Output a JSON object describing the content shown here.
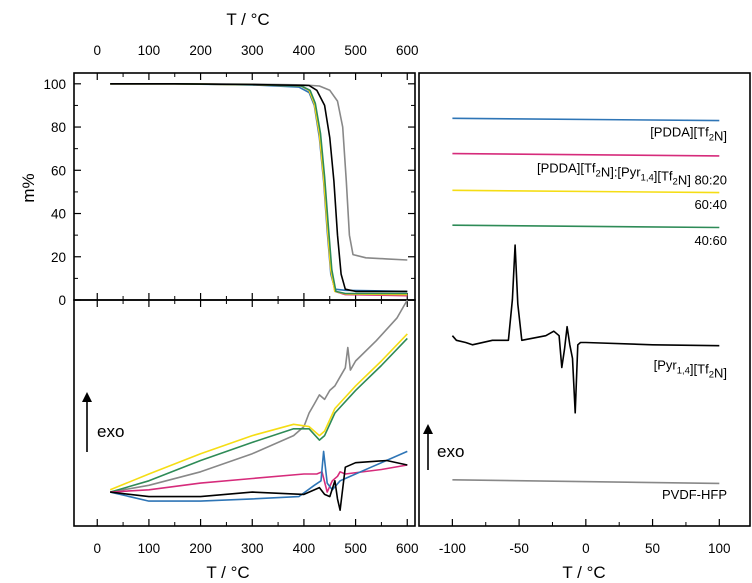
{
  "chart_data": [
    {
      "id": "tga",
      "type": "line",
      "xlabel": "T / °C",
      "ylabel": "m%",
      "xlim": [
        -45,
        615
      ],
      "ylim": [
        0,
        105
      ],
      "xticks": [
        0,
        100,
        200,
        300,
        400,
        500,
        600
      ],
      "yticks": [
        0,
        20,
        40,
        60,
        80,
        100
      ],
      "series": [
        {
          "color": "#888888",
          "x": [
            25,
            150,
            300,
            400,
            430,
            450,
            465,
            475,
            482,
            488,
            495,
            520,
            560,
            600
          ],
          "y": [
            100,
            100,
            99.8,
            99.5,
            99,
            97,
            92,
            80,
            55,
            30,
            21,
            19.5,
            19,
            18.5
          ]
        },
        {
          "color": "#2e75b6",
          "x": [
            25,
            150,
            300,
            390,
            410,
            420,
            430,
            438,
            445,
            452,
            460,
            480,
            600
          ],
          "y": [
            100,
            100,
            99.5,
            98.5,
            96,
            90,
            75,
            55,
            32,
            12,
            5,
            4.5,
            4
          ]
        },
        {
          "color": "#d62b7b",
          "x": [
            25,
            150,
            300,
            395,
            410,
            420,
            430,
            438,
            445,
            452,
            460,
            480,
            600
          ],
          "y": [
            100,
            100,
            99.6,
            99,
            97,
            91,
            77,
            57,
            35,
            14,
            4,
            2.5,
            2
          ]
        },
        {
          "color": "#f5dd14",
          "x": [
            25,
            150,
            300,
            395,
            410,
            420,
            430,
            438,
            445,
            452,
            460,
            480,
            600
          ],
          "y": [
            100,
            100,
            99.6,
            99,
            97,
            91,
            77,
            57,
            35,
            14,
            4,
            2.8,
            2.5
          ]
        },
        {
          "color": "#2e8b57",
          "x": [
            25,
            150,
            300,
            395,
            412,
            422,
            432,
            440,
            447,
            454,
            462,
            480,
            600
          ],
          "y": [
            100,
            100,
            99.6,
            99,
            97,
            91,
            77,
            57,
            35,
            14,
            4,
            3,
            3
          ]
        },
        {
          "color": "#000000",
          "x": [
            25,
            150,
            300,
            410,
            425,
            440,
            450,
            458,
            465,
            472,
            480,
            500,
            600
          ],
          "y": [
            100,
            100,
            99.7,
            99.2,
            97,
            90,
            75,
            55,
            30,
            12,
            5,
            4,
            4
          ]
        }
      ]
    },
    {
      "id": "dta",
      "type": "line",
      "xlabel": "T / °C",
      "annotation": "exo",
      "xlim": [
        -45,
        615
      ],
      "ylim": [
        0,
        100
      ],
      "xticks": [
        0,
        100,
        200,
        300,
        400,
        500,
        600
      ],
      "series": [
        {
          "color": "#888888",
          "x": [
            25,
            100,
            200,
            300,
            380,
            400,
            410,
            420,
            430,
            440,
            450,
            460,
            470,
            480,
            485,
            490,
            500,
            540,
            580,
            600
          ],
          "y": [
            15,
            18,
            24,
            32,
            40,
            44,
            50,
            54,
            58,
            56,
            60,
            62,
            66,
            70,
            79,
            69,
            73,
            82,
            92,
            100
          ]
        },
        {
          "color": "#f5dd14",
          "x": [
            25,
            100,
            200,
            300,
            380,
            410,
            430,
            440,
            460,
            500,
            550,
            600
          ],
          "y": [
            16,
            23,
            32,
            40,
            45,
            44,
            40,
            42,
            52,
            62,
            73,
            85
          ]
        },
        {
          "color": "#2e8b57",
          "x": [
            25,
            100,
            200,
            300,
            380,
            410,
            430,
            440,
            460,
            500,
            550,
            600
          ],
          "y": [
            15,
            20,
            29,
            37,
            43,
            43,
            38,
            40,
            50,
            60,
            71,
            83
          ]
        },
        {
          "color": "#d62b7b",
          "x": [
            25,
            100,
            200,
            300,
            400,
            425,
            435,
            445,
            455,
            465,
            470,
            480,
            550,
            600
          ],
          "y": [
            15,
            16,
            19,
            21,
            23,
            23,
            24,
            15,
            20,
            22,
            24,
            23,
            25,
            27
          ]
        },
        {
          "color": "#2e75b6",
          "x": [
            25,
            100,
            200,
            300,
            390,
            420,
            433,
            438,
            445,
            455,
            470,
            480,
            530,
            600
          ],
          "y": [
            15,
            11,
            11,
            12,
            13,
            18,
            20,
            33,
            19,
            16,
            20,
            21,
            26,
            33
          ]
        },
        {
          "color": "#000000",
          "x": [
            25,
            100,
            200,
            300,
            400,
            430,
            440,
            450,
            460,
            465,
            470,
            480,
            500,
            560,
            600
          ],
          "y": [
            15,
            13,
            13,
            15,
            14,
            17,
            14,
            13,
            20,
            12,
            7,
            26,
            28,
            29,
            27
          ]
        }
      ]
    },
    {
      "id": "dsc",
      "type": "line",
      "xlabel": "T / °C",
      "annotation": "exo",
      "xlim": [
        -125,
        123
      ],
      "ylim": [
        0,
        100
      ],
      "xticks": [
        -100,
        -50,
        0,
        50,
        100
      ],
      "series": [
        {
          "color": "#2e75b6",
          "label": "[PDDA][Tf2N]",
          "x": [
            -100,
            100
          ],
          "y": [
            90,
            89.5
          ]
        },
        {
          "color": "#d62b7b",
          "label": "[PDDA][Tf2N]:[Pyr1,4][Tf2N] 80:20",
          "x": [
            -100,
            100
          ],
          "y": [
            82.2,
            81.7
          ]
        },
        {
          "color": "#f5dd14",
          "label": "60:40",
          "x": [
            -100,
            100
          ],
          "y": [
            74.1,
            73.6
          ]
        },
        {
          "color": "#2e8b57",
          "label": "40:60",
          "x": [
            -100,
            100
          ],
          "y": [
            66.4,
            65.9
          ]
        },
        {
          "color": "#000000",
          "label": "[Pyr1,4][Tf2N]",
          "x": [
            -100,
            -97,
            -90,
            -85,
            -70,
            -58,
            -55,
            -53,
            -51,
            -48,
            -30,
            -24,
            -20,
            -18,
            -16,
            -14,
            -12,
            -10,
            -8,
            -6,
            -4,
            -2,
            0,
            50,
            100
          ],
          "y": [
            42,
            41,
            40.5,
            40,
            41,
            41,
            50,
            62,
            49,
            41,
            42,
            43,
            42,
            35,
            39,
            44,
            40,
            37,
            25,
            40,
            40.5,
            40.5,
            40.5,
            40,
            39.8
          ]
        },
        {
          "color": "#888888",
          "label": "PVDF-HFP",
          "x": [
            -100,
            100
          ],
          "y": [
            10.2,
            9.4
          ]
        }
      ],
      "labels": [
        {
          "base": "[PDDA][Tf",
          "sub": "2",
          "rest": "N]",
          "y": 86
        },
        {
          "base": "[PDDA][Tf",
          "sub": "2",
          "rest": "N]:[Pyr",
          "sub2": "1,4",
          "rest2": "][Tf",
          "sub3": "2",
          "rest3": "N] 80:20",
          "y": 78
        },
        {
          "base": "60:40",
          "y": 70
        },
        {
          "base": "40:60",
          "y": 62
        },
        {
          "base": "[Pyr",
          "sub": "1,4",
          "rest": "][Tf",
          "sub2": "2",
          "rest2": "N]",
          "y": 34.5
        },
        {
          "base": "PVDF-HFP",
          "y": 6
        }
      ]
    }
  ]
}
